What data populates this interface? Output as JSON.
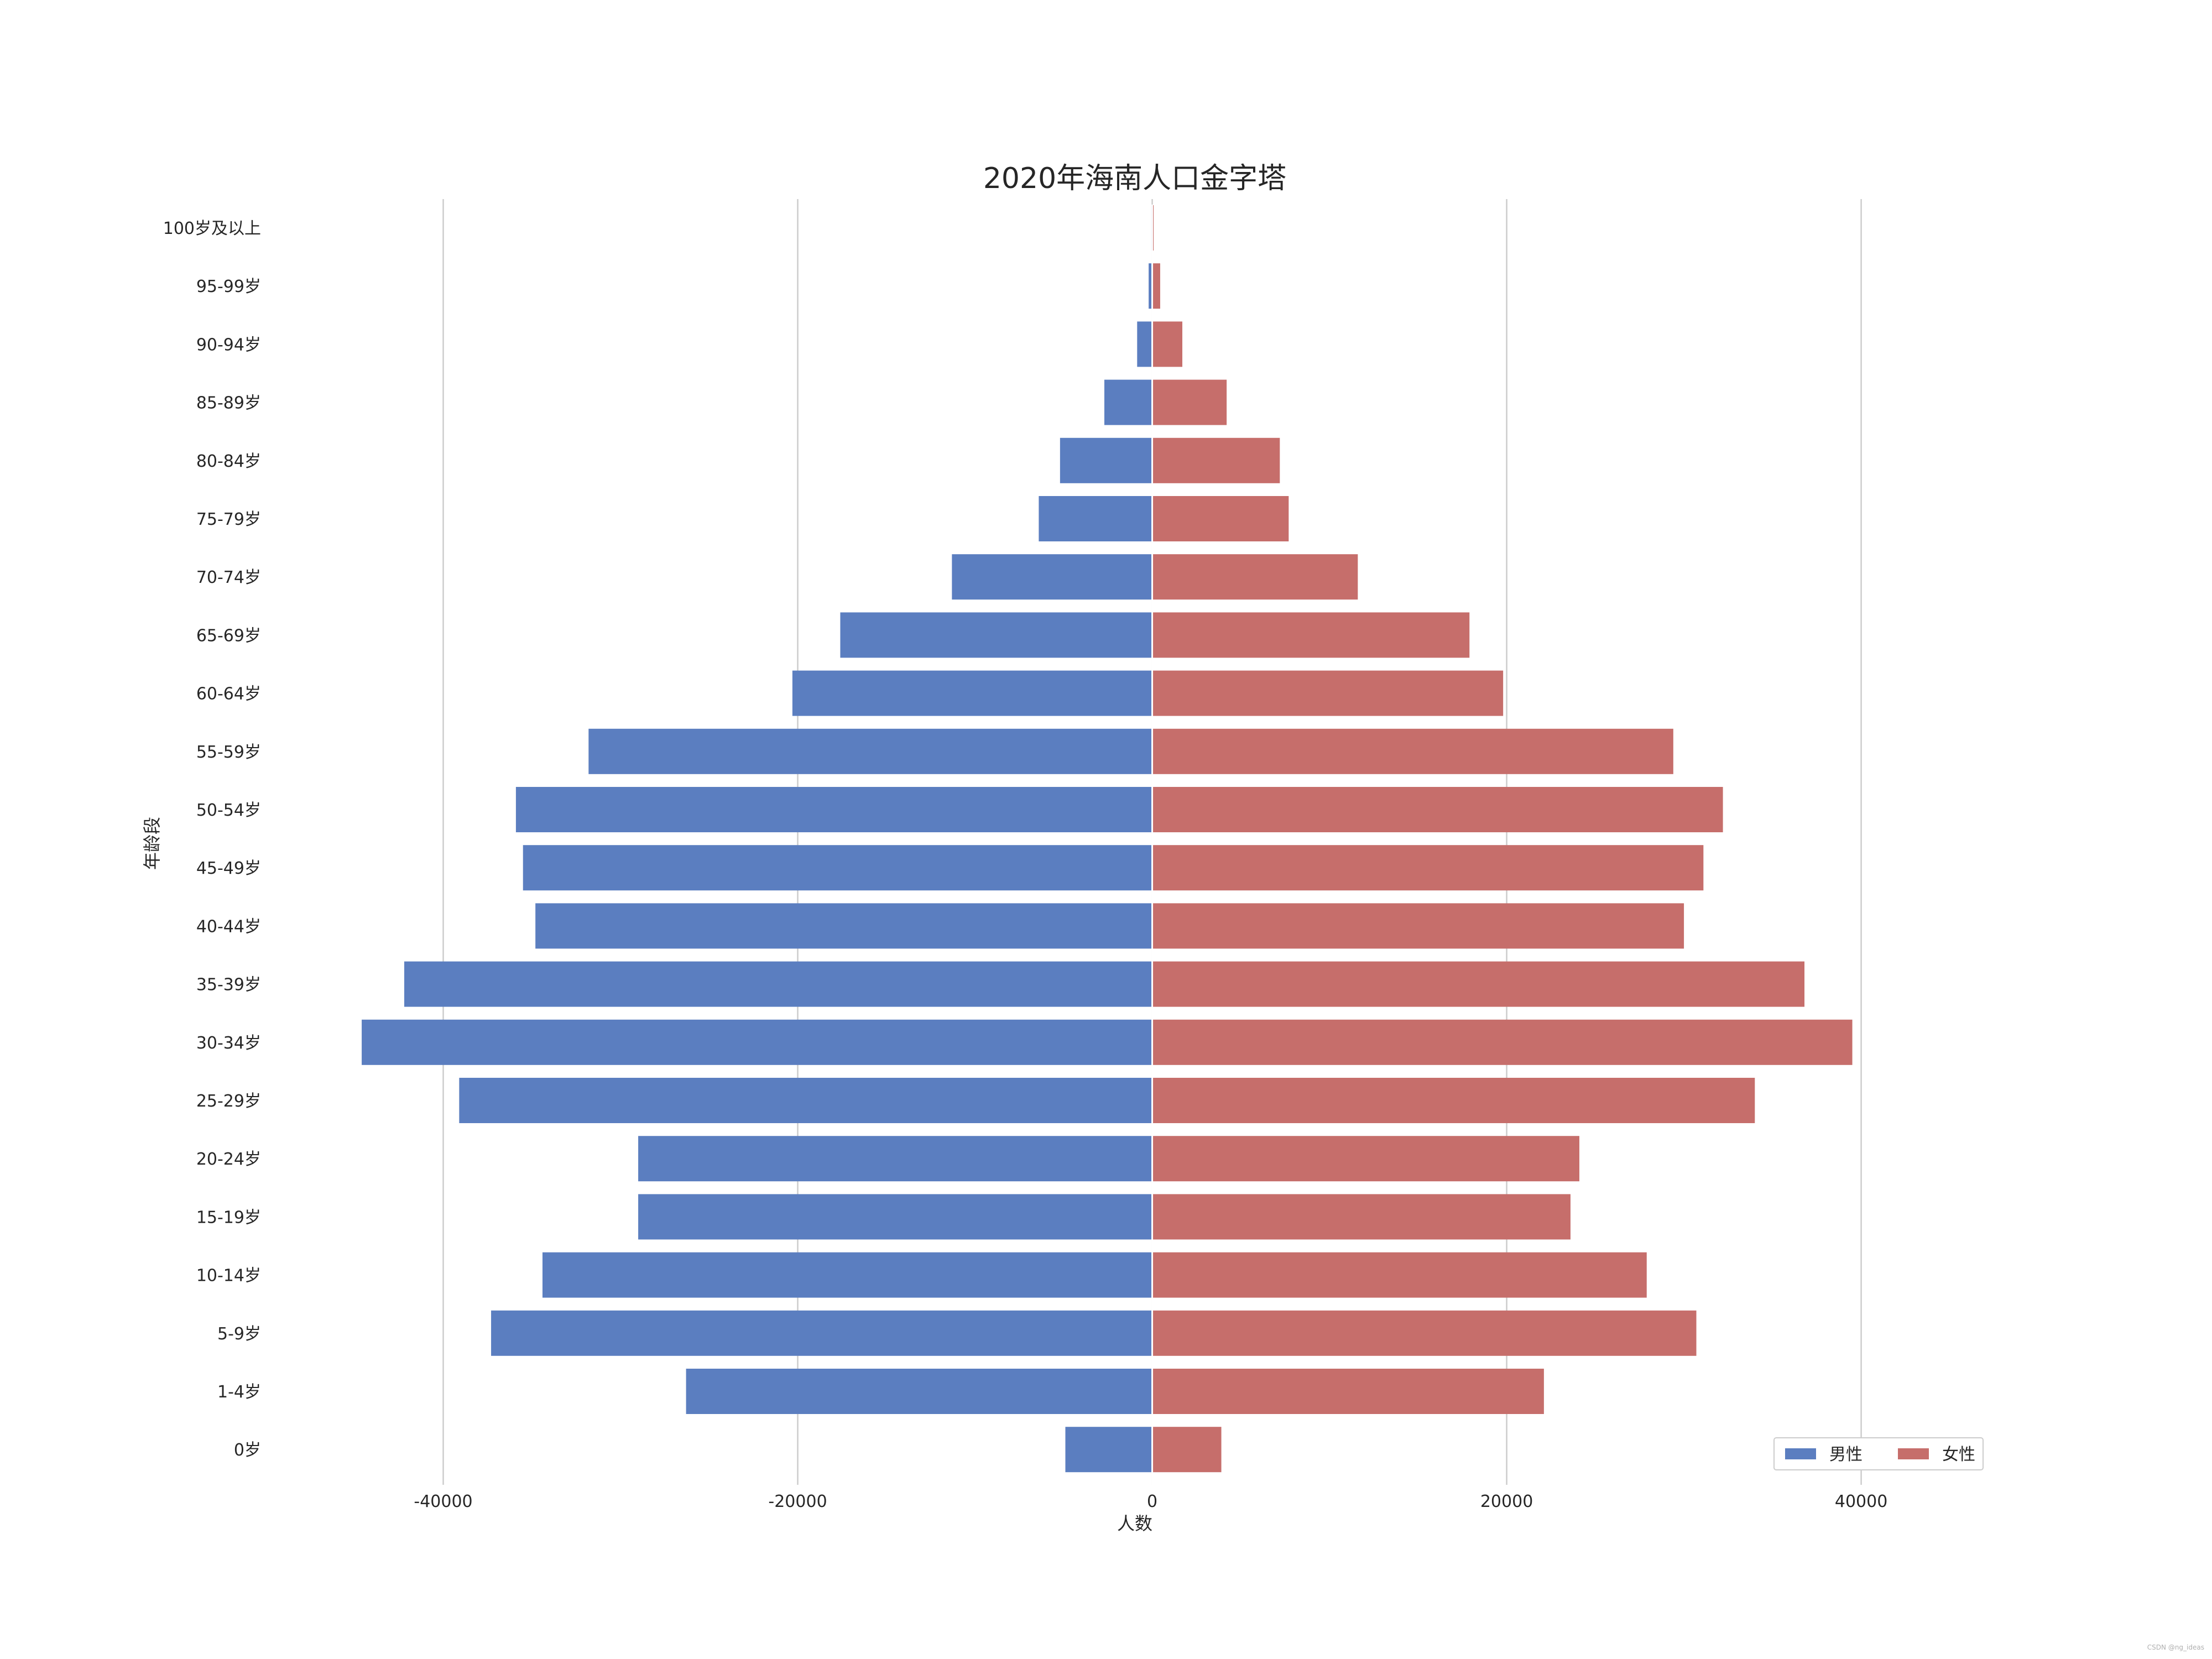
{
  "chart_data": {
    "type": "bar",
    "orientation": "horizontal",
    "title": "2020年海南人口金字塔",
    "xlabel": "人数",
    "ylabel": "年龄段",
    "xlim": [
      -50000,
      48000
    ],
    "xticks": [
      -40000,
      -20000,
      0,
      20000,
      40000
    ],
    "xtick_labels": [
      "-40000",
      "-20000",
      "0",
      "20000",
      "40000"
    ],
    "grid": "vertical",
    "legend_position": "lower-right",
    "categories": [
      "100岁及以上",
      "95-99岁",
      "90-94岁",
      "85-89岁",
      "80-84岁",
      "75-79岁",
      "70-74岁",
      "65-69岁",
      "60-64岁",
      "55-59岁",
      "50-54岁",
      "45-49岁",
      "40-44岁",
      "35-39岁",
      "30-34岁",
      "25-29岁",
      "20-24岁",
      "15-19岁",
      "10-14岁",
      "5-9岁",
      "1-4岁",
      "0岁"
    ],
    "series": [
      {
        "name": "男性",
        "color": "#5b7ec0",
        "values": [
          -50,
          -200,
          -850,
          -2700,
          -5200,
          -6400,
          -11300,
          -17600,
          -20300,
          -31800,
          -35900,
          -35500,
          -34800,
          -42200,
          -44600,
          -39100,
          -29000,
          -29000,
          -34400,
          -37300,
          -26300,
          -4900
        ]
      },
      {
        "name": "女性",
        "color": "#c66e6b",
        "values": [
          80,
          450,
          1700,
          4200,
          7200,
          7700,
          11600,
          17900,
          19800,
          29400,
          32200,
          31100,
          30000,
          36800,
          39500,
          34000,
          24100,
          23600,
          27900,
          30700,
          22100,
          3900
        ]
      }
    ]
  },
  "watermark": "CSDN @ng_ideas"
}
